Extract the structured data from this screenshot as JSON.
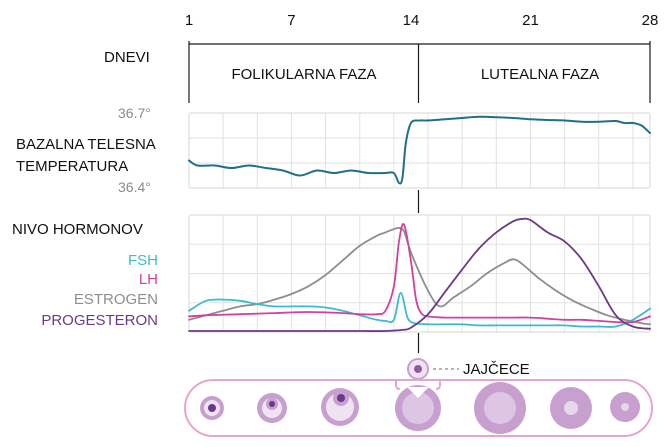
{
  "chart_data": {
    "type": "line",
    "days_axis": {
      "label": "DNEVI",
      "ticks": [
        1,
        7,
        14,
        21,
        28
      ],
      "tick_labels": [
        "1",
        "7",
        "14",
        "21",
        "28"
      ],
      "range": [
        1,
        28
      ]
    },
    "phases": [
      {
        "name": "FOLIKULARNA FAZA",
        "from": 1,
        "to": 14
      },
      {
        "name": "LUTEALNA FAZA",
        "from": 14,
        "to": 28
      }
    ],
    "temperature_panel": {
      "label_lines": [
        "BAZALNA TELESNA",
        "TEMPERATURA"
      ],
      "ymax_label": "36.7°",
      "ymin_label": "36.4°",
      "ylim": [
        36.4,
        36.7
      ],
      "grid": true,
      "series": [
        {
          "color": "#1f6f8b",
          "x": [
            1,
            1.5,
            2.5,
            3.5,
            4.5,
            5.5,
            6.5,
            7.5,
            8.5,
            9.5,
            10.5,
            11.5,
            12.5,
            13,
            13.3,
            13.5,
            13.7,
            14,
            14.5,
            15,
            16,
            17,
            18,
            19,
            20,
            21,
            22,
            23,
            24,
            25,
            26,
            26.5,
            27,
            27.5,
            28
          ],
          "y": [
            36.51,
            36.49,
            36.49,
            36.48,
            36.49,
            36.48,
            36.47,
            36.45,
            36.47,
            36.46,
            36.47,
            36.46,
            36.46,
            36.46,
            36.42,
            36.44,
            36.58,
            36.66,
            36.67,
            36.67,
            36.675,
            36.68,
            36.685,
            36.683,
            36.68,
            36.675,
            36.672,
            36.67,
            36.665,
            36.665,
            36.668,
            36.66,
            36.66,
            36.65,
            36.62
          ]
        }
      ]
    },
    "hormone_panel": {
      "label": "NIVO HORMONOV",
      "ylim": [
        0,
        100
      ],
      "grid": true,
      "series": [
        {
          "name": "FSH",
          "color": "#3dbad0",
          "x": [
            1,
            2,
            3,
            4,
            5,
            6,
            7,
            8,
            9,
            10,
            11,
            12,
            12.5,
            13,
            13.4,
            13.8,
            14.2,
            15,
            16,
            17,
            18,
            19,
            20,
            21,
            22,
            23,
            24,
            25,
            26,
            27,
            28
          ],
          "y": [
            18,
            27,
            28,
            27,
            24,
            22,
            22,
            22,
            21,
            18,
            14,
            10,
            9,
            10,
            34,
            12,
            7,
            6,
            6,
            6,
            5,
            5,
            5,
            5,
            5,
            5,
            4,
            4,
            4,
            10,
            20
          ]
        },
        {
          "name": "LH",
          "color": "#d0429c",
          "x": [
            1,
            2,
            4,
            6,
            8,
            10,
            11,
            12,
            12.5,
            13,
            13.3,
            13.6,
            14,
            14.3,
            14.6,
            15,
            16,
            17,
            18,
            19,
            20,
            21,
            22,
            23,
            24,
            25,
            26,
            27,
            28
          ],
          "y": [
            13,
            14,
            15,
            16,
            17,
            16,
            15,
            15,
            18,
            40,
            80,
            95,
            62,
            28,
            16,
            13,
            12,
            12,
            12,
            12,
            12,
            12,
            11,
            10,
            10,
            9,
            8,
            8,
            13
          ]
        },
        {
          "name": "ESTROGEN",
          "color": "#8e8e8e",
          "x": [
            1,
            2,
            3,
            4,
            5,
            6,
            7,
            8,
            9,
            10,
            11,
            12,
            12.5,
            13,
            13.3,
            13.6,
            14,
            15,
            15.7,
            16.5,
            17.5,
            18.5,
            19.5,
            20,
            20.5,
            21.5,
            22.5,
            23.5,
            24.5,
            25.5,
            26.5,
            27.5,
            28
          ],
          "y": [
            10,
            14,
            18,
            22,
            24,
            28,
            33,
            40,
            50,
            63,
            76,
            85,
            88,
            91,
            92,
            89,
            70,
            36,
            22,
            30,
            40,
            52,
            61,
            64,
            60,
            47,
            36,
            27,
            20,
            14,
            10,
            7,
            6
          ]
        },
        {
          "name": "PROGESTERON",
          "color": "#6a3a8a",
          "x": [
            1,
            4,
            8,
            11,
            12.5,
            13.5,
            14,
            15,
            16,
            17,
            18,
            19,
            20,
            20.5,
            21,
            22,
            23,
            24,
            25,
            26,
            27,
            28
          ],
          "y": [
            0,
            0,
            0,
            0,
            0,
            1,
            3,
            15,
            35,
            55,
            74,
            88,
            98,
            100,
            99,
            88,
            80,
            64,
            40,
            14,
            4,
            2
          ]
        }
      ]
    },
    "ovum_label": "JAJČECE",
    "colors": {
      "text": "#111111",
      "muted": "#8a8a8a",
      "grid": "#e2e2e2",
      "frame": "#d7d7d7",
      "follicle_fill": "#c8a0d0",
      "follicle_dark": "#8a5ca0",
      "follicle_light": "#efe3f2",
      "follicle_outline": "#e6a6cc"
    }
  }
}
